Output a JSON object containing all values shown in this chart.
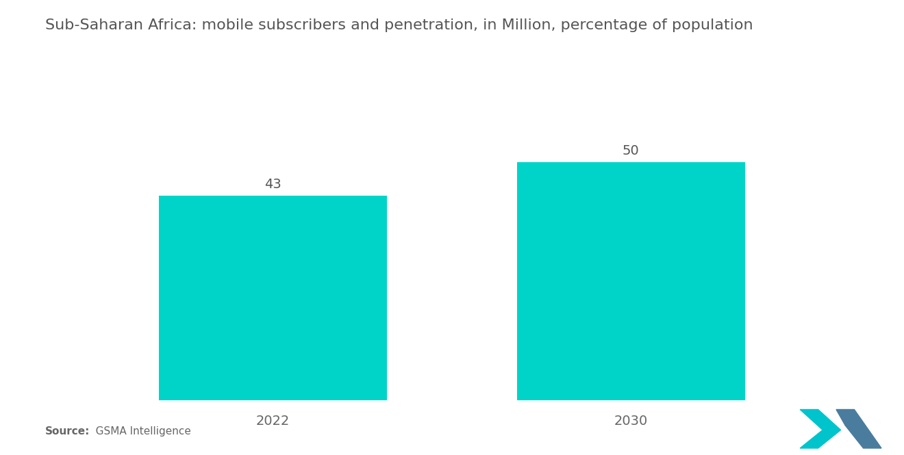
{
  "title": "Sub-Saharan Africa: mobile subscribers and penetration, in Million, percentage of population",
  "categories": [
    "2022",
    "2030"
  ],
  "values": [
    43,
    50
  ],
  "bar_color": "#00D4C8",
  "background_color": "#ffffff",
  "title_fontsize": 16,
  "bar_label_fontsize": 14,
  "tick_fontsize": 14,
  "source_text_bold": "Source:",
  "source_text_normal": "   GSMA Intelligence",
  "ylim": [
    0,
    65
  ],
  "bar_width": 0.28,
  "x_positions": [
    0.28,
    0.72
  ]
}
